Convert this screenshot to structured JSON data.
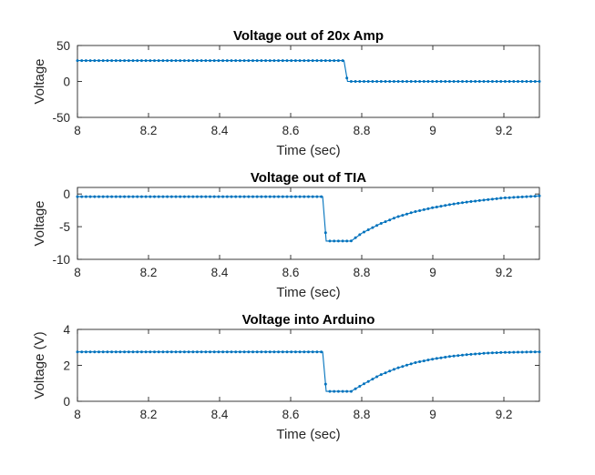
{
  "chart_data": [
    {
      "type": "line",
      "title": "Voltage out of 20x Amp",
      "xlabel": "Time (sec)",
      "ylabel": "Voltage",
      "xlim": [
        8,
        9.3
      ],
      "ylim": [
        -50,
        50
      ],
      "xticks": [
        "8",
        "8.2",
        "8.4",
        "8.6",
        "8.8",
        "9",
        "9.2"
      ],
      "xtick_values": [
        8,
        8.2,
        8.4,
        8.6,
        8.8,
        9,
        9.2
      ],
      "yticks": [
        "-50",
        "0",
        "50"
      ],
      "ytick_values": [
        -50,
        0,
        50
      ],
      "grid": false,
      "color": "#0072BD",
      "series": [
        {
          "x": [
            8.0,
            8.1,
            8.2,
            8.3,
            8.4,
            8.5,
            8.6,
            8.75,
            8.76,
            8.8,
            8.9,
            9.0,
            9.1,
            9.2,
            9.3
          ],
          "values": [
            29,
            29,
            29,
            29,
            29,
            29,
            29,
            29,
            0,
            0,
            0,
            0,
            0,
            0,
            0
          ]
        }
      ]
    },
    {
      "type": "line",
      "title": "Voltage out of TIA",
      "xlabel": "Time (sec)",
      "ylabel": "Voltage",
      "xlim": [
        8,
        9.3
      ],
      "ylim": [
        -10,
        1
      ],
      "xticks": [
        "8",
        "8.2",
        "8.4",
        "8.6",
        "8.8",
        "9",
        "9.2"
      ],
      "xtick_values": [
        8,
        8.2,
        8.4,
        8.6,
        8.8,
        9,
        9.2
      ],
      "yticks": [
        "-10",
        "-5",
        "0"
      ],
      "ytick_values": [
        -10,
        -5,
        0
      ],
      "grid": false,
      "color": "#0072BD",
      "series": [
        {
          "x": [
            8.0,
            8.1,
            8.2,
            8.3,
            8.4,
            8.5,
            8.6,
            8.69,
            8.7,
            8.77,
            8.8,
            8.85,
            8.9,
            8.95,
            9.0,
            9.05,
            9.1,
            9.15,
            9.2,
            9.3
          ],
          "values": [
            -0.4,
            -0.4,
            -0.4,
            -0.4,
            -0.4,
            -0.4,
            -0.4,
            -0.4,
            -7.2,
            -7.2,
            -6.0,
            -4.6,
            -3.5,
            -2.7,
            -2.1,
            -1.6,
            -1.2,
            -0.9,
            -0.6,
            -0.3
          ]
        }
      ]
    },
    {
      "type": "line",
      "title": "Voltage into Arduino",
      "xlabel": "Time (sec)",
      "ylabel": "Voltage (V)",
      "xlim": [
        8,
        9.3
      ],
      "ylim": [
        0,
        4
      ],
      "xticks": [
        "8",
        "8.2",
        "8.4",
        "8.6",
        "8.8",
        "9",
        "9.2"
      ],
      "xtick_values": [
        8,
        8.2,
        8.4,
        8.6,
        8.8,
        9,
        9.2
      ],
      "yticks": [
        "0",
        "2",
        "4"
      ],
      "ytick_values": [
        0,
        2,
        4
      ],
      "grid": false,
      "color": "#0072BD",
      "series": [
        {
          "x": [
            8.0,
            8.1,
            8.2,
            8.3,
            8.4,
            8.5,
            8.6,
            8.69,
            8.7,
            8.77,
            8.8,
            8.85,
            8.9,
            8.95,
            9.0,
            9.05,
            9.1,
            9.15,
            9.2,
            9.3
          ],
          "values": [
            2.75,
            2.75,
            2.75,
            2.75,
            2.75,
            2.75,
            2.75,
            2.75,
            0.55,
            0.55,
            0.9,
            1.45,
            1.85,
            2.15,
            2.35,
            2.5,
            2.6,
            2.68,
            2.72,
            2.75
          ]
        }
      ]
    }
  ]
}
